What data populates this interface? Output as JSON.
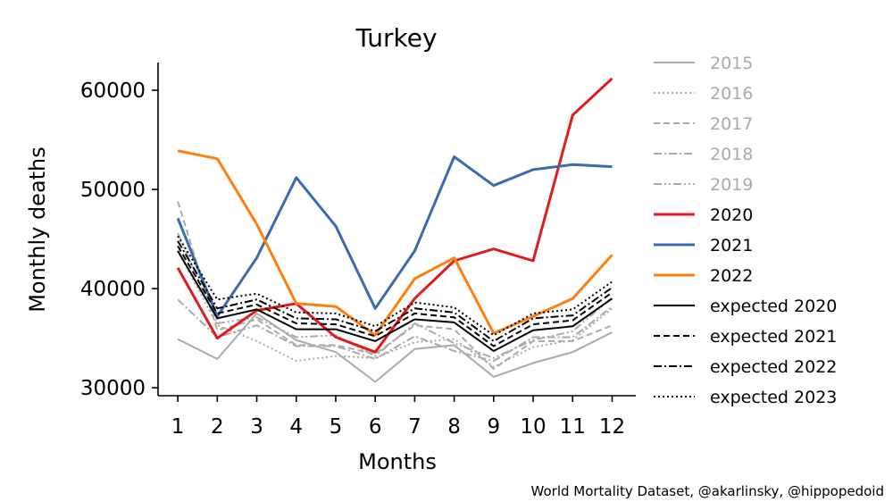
{
  "chart_data": {
    "type": "line",
    "title": "Turkey",
    "xlabel": "Months",
    "ylabel": "Monthly deaths",
    "x": [
      1,
      2,
      3,
      4,
      5,
      6,
      7,
      8,
      9,
      10,
      11,
      12
    ],
    "xlim": [
      0.5,
      12.6
    ],
    "ylim": [
      29200,
      62800
    ],
    "yticks": [
      30000,
      40000,
      50000,
      60000
    ],
    "xticks": [
      1,
      2,
      3,
      4,
      5,
      6,
      7,
      8,
      9,
      10,
      11,
      12
    ],
    "grid": false,
    "legend_position": "right, outside plot",
    "series": [
      {
        "name": "2015",
        "color": "#aaaaaa",
        "dash": "solid",
        "width": 2,
        "text_color": "#aaaaaa",
        "values": [
          34900,
          32900,
          37500,
          34800,
          33600,
          30600,
          33900,
          34300,
          31100,
          32500,
          33600,
          35600
        ]
      },
      {
        "name": "2016",
        "color": "#aaaaaa",
        "dash": "dotted",
        "width": 2,
        "text_color": "#aaaaaa",
        "values": [
          43800,
          36300,
          34700,
          32700,
          33200,
          33000,
          34600,
          34900,
          32100,
          34100,
          34800,
          38000
        ]
      },
      {
        "name": "2017",
        "color": "#aaaaaa",
        "dash": "dashed",
        "width": 2,
        "text_color": "#aaaaaa",
        "values": [
          48800,
          35800,
          36900,
          34300,
          34300,
          33400,
          36300,
          35900,
          31900,
          34700,
          34700,
          36300
        ]
      },
      {
        "name": "2018",
        "color": "#aaaaaa",
        "dash": "dashdot",
        "width": 2,
        "text_color": "#aaaaaa",
        "values": [
          38900,
          35100,
          36300,
          34200,
          34200,
          32900,
          35200,
          33700,
          32700,
          35100,
          35100,
          38200
        ]
      },
      {
        "name": "2019",
        "color": "#aaaaaa",
        "dash": "dashdotdot",
        "width": 2,
        "text_color": "#aaaaaa",
        "values": [
          45600,
          36500,
          37100,
          35100,
          35300,
          33200,
          36500,
          34500,
          33000,
          34800,
          35700,
          39100
        ]
      },
      {
        "name": "2020",
        "color": "#e31a1c",
        "dash": "solid",
        "width": 3,
        "text_color": "#000000",
        "values": [
          42100,
          35000,
          37800,
          38500,
          35100,
          33600,
          39000,
          42800,
          44000,
          42800,
          57500,
          61200
        ]
      },
      {
        "name": "2021",
        "color": "#3a6bb0",
        "dash": "solid",
        "width": 3,
        "text_color": "#000000",
        "values": [
          47100,
          37200,
          43100,
          51200,
          46300,
          38000,
          43800,
          53300,
          50400,
          52000,
          52500,
          52300
        ]
      },
      {
        "name": "2022",
        "color": "#ff7f0e",
        "dash": "solid",
        "width": 3,
        "text_color": "#000000",
        "values": [
          53900,
          53100,
          46500,
          38500,
          38200,
          35300,
          41000,
          43100,
          35500,
          37200,
          39000,
          43400
        ]
      },
      {
        "name": "expected 2020",
        "color": "#000000",
        "dash": "solid",
        "width": 2,
        "text_color": "#000000",
        "values": [
          43800,
          37000,
          37900,
          35900,
          35900,
          34700,
          36900,
          36600,
          33700,
          35800,
          36200,
          39000
        ]
      },
      {
        "name": "expected 2021",
        "color": "#000000",
        "dash": "dashed",
        "width": 2,
        "text_color": "#000000",
        "values": [
          44300,
          37500,
          38400,
          36500,
          36400,
          35200,
          37500,
          37100,
          34200,
          36400,
          36800,
          39600
        ]
      },
      {
        "name": "expected 2022",
        "color": "#000000",
        "dash": "dashdot",
        "width": 2,
        "text_color": "#000000",
        "values": [
          44800,
          38000,
          38900,
          37000,
          36900,
          35700,
          38000,
          37600,
          34700,
          37000,
          37300,
          40100
        ]
      },
      {
        "name": "expected 2023",
        "color": "#000000",
        "dash": "dotted",
        "width": 2,
        "text_color": "#000000",
        "values": [
          45300,
          38900,
          39500,
          37600,
          37500,
          36200,
          38600,
          38100,
          35300,
          37500,
          37900,
          40700
        ]
      }
    ]
  },
  "credit": "World Mortality Dataset, @akarlinsky, @hippopedoid"
}
